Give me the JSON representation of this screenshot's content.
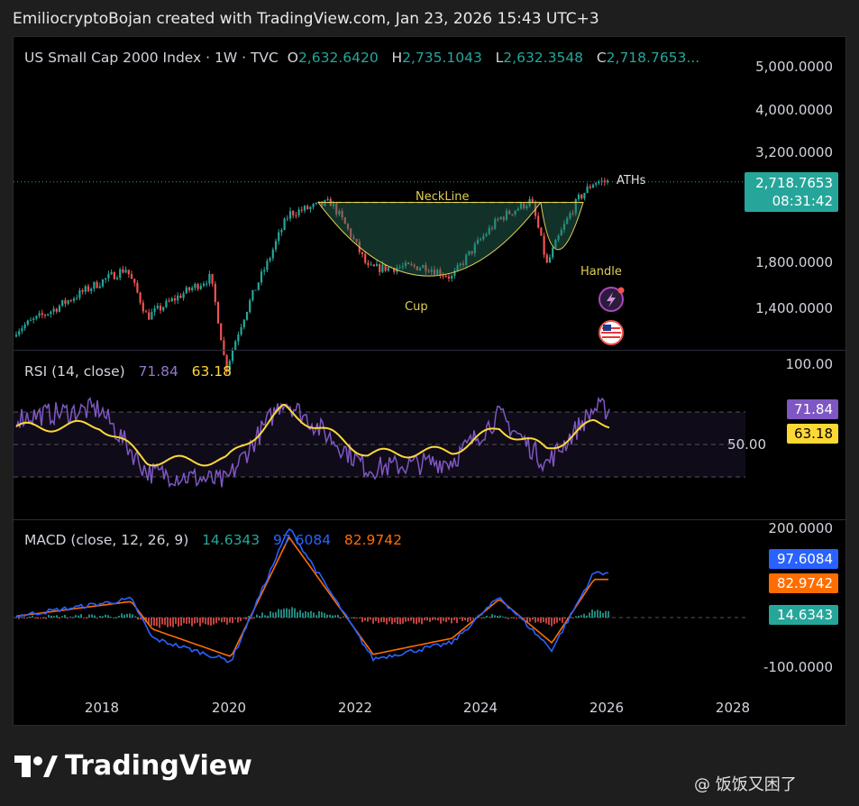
{
  "header": {
    "text": "EmiliocryptoBojan created with TradingView.com, Jan 23, 2026 15:43 UTC+3"
  },
  "main": {
    "symbol": "US Small Cap 2000 Index · 1W · TVC",
    "ohlc": {
      "o_label": "O",
      "o": "2,632.6420",
      "h_label": "H",
      "h": "2,735.1043",
      "l_label": "L",
      "l": "2,632.3548",
      "c_label": "C",
      "c": "2,718.7653..."
    },
    "price_axis": [
      "5,000.0000",
      "4,000.0000",
      "3,200.0000",
      "1,800.0000",
      "1,400.0000"
    ],
    "last_price": "2,718.7653",
    "countdown": "08:31:42",
    "annotations": {
      "neckline": "NeckLine",
      "cup": "Cup",
      "handle": "Handle",
      "aths": "ATHs"
    }
  },
  "rsi": {
    "title": "RSI (14, close)",
    "value": "71.84",
    "ma": "63.18",
    "axis": [
      "100.00",
      "50.00"
    ]
  },
  "macd": {
    "title": "MACD (close, 12, 26, 9)",
    "hist": "14.6343",
    "macd": "97.6084",
    "signal": "82.9742",
    "axis": [
      "200.0000",
      "-100.0000"
    ]
  },
  "x_axis": [
    "2018",
    "2020",
    "2022",
    "2024",
    "2026",
    "2028"
  ],
  "brand": {
    "name": "TradingView"
  },
  "watermark": {
    "text": "@ 饭饭又困了"
  },
  "colors": {
    "up": "#26a69a",
    "down": "#ef5350",
    "rsi": "#7e57c2",
    "rsi_ma": "#fdd835",
    "macd": "#2962ff",
    "signal": "#ff6d00",
    "annotation": "#e0cf55"
  },
  "chart_data": [
    {
      "type": "line",
      "title": "US Small Cap 2000 Index · 1W · TVC",
      "x": [
        "2016-09",
        "2017-06",
        "2018-08",
        "2018-12",
        "2019-12",
        "2020-03",
        "2020-11",
        "2021-03",
        "2021-11",
        "2022-06",
        "2023-05",
        "2023-10",
        "2024-07",
        "2025-01",
        "2025-04",
        "2025-10",
        "2026-01"
      ],
      "series": [
        {
          "values": [
            1200,
            1380,
            1720,
            1330,
            1640,
            1000,
            1780,
            2300,
            2440,
            1720,
            1740,
            1640,
            2240,
            2460,
            1750,
            2480,
            2718.77
          ]
        }
      ],
      "yscale": "log",
      "ylim": [
        950,
        5500
      ]
    },
    {
      "type": "line",
      "title": "RSI (14, close)",
      "x": [
        "2016-09",
        "2018-03",
        "2018-12",
        "2020-03",
        "2021-02",
        "2022-06",
        "2023-10",
        "2024-07",
        "2025-04",
        "2026-01"
      ],
      "series": [
        {
          "name": "RSI",
          "values": [
            66,
            72,
            33,
            27,
            78,
            35,
            40,
            68,
            38,
            71.84
          ]
        },
        {
          "name": "MA",
          "values": [
            60,
            62,
            40,
            40,
            72,
            44,
            46,
            60,
            47,
            63.18
          ]
        }
      ],
      "ylim": [
        0,
        100
      ]
    },
    {
      "type": "line",
      "title": "MACD (close, 12, 26, 9)",
      "x": [
        "2016-09",
        "2018-09",
        "2019-01",
        "2020-04",
        "2021-03",
        "2022-07",
        "2023-10",
        "2024-07",
        "2025-05",
        "2026-01"
      ],
      "series": [
        {
          "name": "MACD",
          "values": [
            0,
            40,
            -45,
            -95,
            195,
            -90,
            -55,
            45,
            -70,
            97.61
          ]
        },
        {
          "name": "Signal",
          "values": [
            0,
            35,
            -25,
            -85,
            175,
            -80,
            -45,
            40,
            -55,
            82.97
          ]
        },
        {
          "name": "Histogram",
          "values": [
            0,
            5,
            -20,
            -10,
            20,
            -10,
            -10,
            5,
            -15,
            14.63
          ]
        }
      ],
      "ylim": [
        -130,
        220
      ]
    }
  ]
}
